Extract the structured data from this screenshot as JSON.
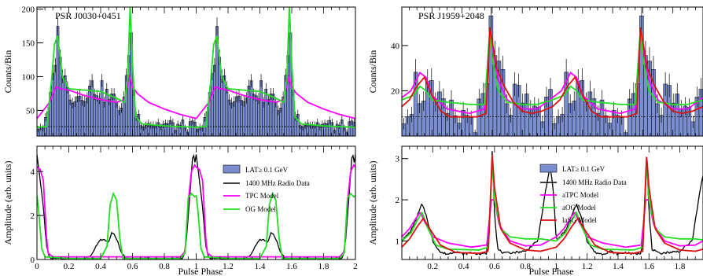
{
  "colors": {
    "lat_fill": "#7b8fd0",
    "lat_edge": "#000000",
    "radio": "#000000",
    "tpc": "#ff00ff",
    "og": "#22dd22",
    "sg": "#dd1111"
  },
  "chart_data": [
    {
      "type": "bar",
      "id": "j0030_top",
      "label": "PSR J0030+0451",
      "ylabel": "Counts/Bin",
      "xlim": [
        0,
        2
      ],
      "ylim": [
        12,
        203
      ],
      "yticks": [
        50,
        100,
        150,
        200
      ],
      "baseline": 26,
      "lat_profile": [
        [
          0,
          26
        ],
        [
          0.05,
          28
        ],
        [
          0.08,
          55
        ],
        [
          0.11,
          120
        ],
        [
          0.125,
          155
        ],
        [
          0.14,
          165
        ],
        [
          0.16,
          110
        ],
        [
          0.19,
          80
        ],
        [
          0.25,
          70
        ],
        [
          0.3,
          78
        ],
        [
          0.35,
          85
        ],
        [
          0.4,
          80
        ],
        [
          0.45,
          70
        ],
        [
          0.5,
          62
        ],
        [
          0.54,
          55
        ],
        [
          0.57,
          100
        ],
        [
          0.585,
          202
        ],
        [
          0.6,
          110
        ],
        [
          0.62,
          45
        ],
        [
          0.66,
          35
        ],
        [
          0.75,
          30
        ],
        [
          0.85,
          28
        ],
        [
          0.95,
          26
        ],
        [
          1,
          26
        ]
      ],
      "series": [
        {
          "name": "TPC Model",
          "color_key": "tpc",
          "points": [
            [
              0,
              38
            ],
            [
              0.04,
              50
            ],
            [
              0.08,
              62
            ],
            [
              0.12,
              85
            ],
            [
              0.15,
              82
            ],
            [
              0.2,
              80
            ],
            [
              0.3,
              72
            ],
            [
              0.4,
              66
            ],
            [
              0.5,
              62
            ],
            [
              0.55,
              66
            ],
            [
              0.58,
              100
            ],
            [
              0.6,
              85
            ],
            [
              0.63,
              75
            ],
            [
              0.7,
              62
            ],
            [
              0.8,
              52
            ],
            [
              0.9,
              44
            ],
            [
              1,
              38
            ]
          ]
        },
        {
          "name": "OG Model",
          "color_key": "og",
          "points": [
            [
              0,
              25
            ],
            [
              0.06,
              26
            ],
            [
              0.09,
              90
            ],
            [
              0.11,
              148
            ],
            [
              0.13,
              160
            ],
            [
              0.16,
              100
            ],
            [
              0.2,
              82
            ],
            [
              0.3,
              80
            ],
            [
              0.4,
              78
            ],
            [
              0.5,
              68
            ],
            [
              0.55,
              62
            ],
            [
              0.57,
              100
            ],
            [
              0.585,
              203
            ],
            [
              0.6,
              120
            ],
            [
              0.62,
              40
            ],
            [
              0.66,
              30
            ],
            [
              0.8,
              27
            ],
            [
              1,
              25
            ]
          ]
        }
      ]
    },
    {
      "type": "line",
      "id": "j0030_bottom",
      "xlabel": "Pulse Phase",
      "ylabel": "Amplitude (arb. units)",
      "xlim": [
        0,
        2
      ],
      "ylim": [
        0,
        5.15
      ],
      "yticks": [
        0,
        2,
        4
      ],
      "xticks": [
        0,
        0.2,
        0.4,
        0.6,
        0.8,
        1,
        1.2,
        1.4,
        1.6,
        1.8,
        2
      ],
      "xtick_labels": [
        "0",
        "0.2",
        "0.4",
        "0.6",
        "0.8",
        "1",
        "1.2",
        "1.4",
        "1.6",
        "1.8",
        "2"
      ],
      "series": [
        {
          "name": "1400 MHz Radio Data",
          "color_key": "radio",
          "points": [
            [
              0,
              4.8
            ],
            [
              0.02,
              3.6
            ],
            [
              0.04,
              2.4
            ],
            [
              0.06,
              0.6
            ],
            [
              0.08,
              0.05
            ],
            [
              0.3,
              0.02
            ],
            [
              0.34,
              0.2
            ],
            [
              0.37,
              0.6
            ],
            [
              0.4,
              0.9
            ],
            [
              0.43,
              0.88
            ],
            [
              0.45,
              0.75
            ],
            [
              0.47,
              1.25
            ],
            [
              0.49,
              1.1
            ],
            [
              0.51,
              0.75
            ],
            [
              0.53,
              0.3
            ],
            [
              0.56,
              0.05
            ],
            [
              0.8,
              0.02
            ],
            [
              0.92,
              0.05
            ],
            [
              0.94,
              1.0
            ],
            [
              0.96,
              2.9
            ],
            [
              0.98,
              4.9
            ],
            [
              1,
              4.1
            ]
          ]
        },
        {
          "name": "TPC Model",
          "color_key": "tpc",
          "points": [
            [
              0,
              4.2
            ],
            [
              0.02,
              4.1
            ],
            [
              0.04,
              3.6
            ],
            [
              0.06,
              1.0
            ],
            [
              0.07,
              0.3
            ],
            [
              0.1,
              0.12
            ],
            [
              0.46,
              0.12
            ],
            [
              0.5,
              0.12
            ],
            [
              0.54,
              0.12
            ],
            [
              0.9,
              0.12
            ],
            [
              0.93,
              0.35
            ],
            [
              0.95,
              2.6
            ],
            [
              0.97,
              4.0
            ],
            [
              0.99,
              4.3
            ],
            [
              1,
              4.2
            ]
          ]
        },
        {
          "name": "OG Model",
          "color_key": "og",
          "points": [
            [
              0,
              2.9
            ],
            [
              0.01,
              2.3
            ],
            [
              0.03,
              0.5
            ],
            [
              0.05,
              0.12
            ],
            [
              0.2,
              0.05
            ],
            [
              0.4,
              0.05
            ],
            [
              0.44,
              0.6
            ],
            [
              0.46,
              2.5
            ],
            [
              0.48,
              3.0
            ],
            [
              0.5,
              2.7
            ],
            [
              0.52,
              1.0
            ],
            [
              0.54,
              0.05
            ],
            [
              0.9,
              0.05
            ],
            [
              0.93,
              0.3
            ],
            [
              0.95,
              2.8
            ],
            [
              0.97,
              3.0
            ],
            [
              0.99,
              2.85
            ],
            [
              1,
              2.9
            ]
          ]
        }
      ],
      "bars": {
        "name": "LAT≥ 0.1 GeV"
      }
    },
    {
      "type": "bar",
      "id": "j1959_top",
      "label": "PSR J1959+2048",
      "ylabel": "Counts/Bin",
      "xlim": [
        0,
        2
      ],
      "ylim": [
        0,
        57
      ],
      "yticks": [
        20,
        40
      ],
      "baseline": 8.5,
      "lat_profile": [
        [
          0,
          14
        ],
        [
          0.04,
          16
        ],
        [
          0.08,
          20
        ],
        [
          0.12,
          22
        ],
        [
          0.15,
          24
        ],
        [
          0.18,
          18
        ],
        [
          0.22,
          12
        ],
        [
          0.28,
          10
        ],
        [
          0.36,
          8.5
        ],
        [
          0.44,
          8.5
        ],
        [
          0.5,
          9
        ],
        [
          0.56,
          12
        ],
        [
          0.585,
          48
        ],
        [
          0.6,
          38
        ],
        [
          0.63,
          28
        ],
        [
          0.68,
          20
        ],
        [
          0.75,
          14
        ],
        [
          0.82,
          11
        ],
        [
          0.9,
          10
        ],
        [
          0.96,
          12
        ],
        [
          1,
          14
        ]
      ],
      "series": [
        {
          "name": "aTPC Model",
          "color_key": "tpc",
          "points": [
            [
              0,
              17
            ],
            [
              0.06,
              20
            ],
            [
              0.12,
              28
            ],
            [
              0.16,
              26
            ],
            [
              0.2,
              18
            ],
            [
              0.3,
              12
            ],
            [
              0.45,
              10
            ],
            [
              0.55,
              12
            ],
            [
              0.585,
              45
            ],
            [
              0.6,
              40
            ],
            [
              0.64,
              25
            ],
            [
              0.7,
              16
            ],
            [
              0.8,
              12
            ],
            [
              0.9,
              12
            ],
            [
              1,
              17
            ]
          ]
        },
        {
          "name": "aOG Model",
          "color_key": "og",
          "points": [
            [
              0,
              16
            ],
            [
              0.08,
              18
            ],
            [
              0.12,
              22
            ],
            [
              0.16,
              20
            ],
            [
              0.2,
              16
            ],
            [
              0.3,
              15
            ],
            [
              0.45,
              14
            ],
            [
              0.55,
              14
            ],
            [
              0.585,
              48
            ],
            [
              0.6,
              35
            ],
            [
              0.64,
              20
            ],
            [
              0.7,
              15
            ],
            [
              0.8,
              14
            ],
            [
              0.9,
              14
            ],
            [
              1,
              16
            ]
          ]
        },
        {
          "name": "laSG Model",
          "color_key": "sg",
          "points": [
            [
              0,
              13
            ],
            [
              0.05,
              16
            ],
            [
              0.1,
              22
            ],
            [
              0.15,
              26
            ],
            [
              0.2,
              18
            ],
            [
              0.26,
              11
            ],
            [
              0.32,
              8.5
            ],
            [
              0.5,
              8.5
            ],
            [
              0.56,
              10
            ],
            [
              0.585,
              48
            ],
            [
              0.6,
              42
            ],
            [
              0.63,
              30
            ],
            [
              0.68,
              22
            ],
            [
              0.74,
              15
            ],
            [
              0.8,
              11
            ],
            [
              0.86,
              10
            ],
            [
              0.93,
              11
            ],
            [
              1,
              13
            ]
          ]
        }
      ]
    },
    {
      "type": "line",
      "id": "j1959_bottom",
      "xlabel": "Pulse Phase",
      "ylabel": "Amplitude (arb. units)",
      "xlim": [
        0,
        1.95
      ],
      "ylim": [
        0.55,
        3.3
      ],
      "yticks": [
        1,
        2,
        3
      ],
      "xticks": [
        0.2,
        0.4,
        0.6,
        0.8,
        1,
        1.2,
        1.4,
        1.6,
        1.8
      ],
      "xtick_labels": [
        "0.2",
        "0.4",
        "0.6",
        "0.8",
        "1",
        "1.2",
        "1.4",
        "1.6",
        "1.8"
      ],
      "series": [
        {
          "name": "1400 MHz Radio Data",
          "color_key": "radio",
          "points": [
            [
              0,
              1.0
            ],
            [
              0.06,
              1.25
            ],
            [
              0.1,
              1.6
            ],
            [
              0.13,
              1.9
            ],
            [
              0.16,
              1.6
            ],
            [
              0.2,
              1.0
            ],
            [
              0.25,
              0.72
            ],
            [
              0.3,
              0.68
            ],
            [
              0.35,
              0.75
            ],
            [
              0.4,
              0.68
            ],
            [
              0.45,
              0.72
            ],
            [
              0.5,
              0.68
            ],
            [
              0.55,
              0.7
            ],
            [
              0.575,
              2.0
            ],
            [
              0.585,
              3.2
            ],
            [
              0.6,
              1.7
            ],
            [
              0.62,
              0.8
            ],
            [
              0.66,
              0.7
            ],
            [
              0.72,
              0.72
            ],
            [
              0.8,
              0.75
            ],
            [
              0.88,
              1.0
            ],
            [
              0.93,
              2.2
            ],
            [
              0.96,
              2.8
            ],
            [
              0.98,
              2.3
            ],
            [
              1,
              1.0
            ]
          ]
        },
        {
          "name": "aTPC Model",
          "color_key": "tpc",
          "points": [
            [
              0,
              1.1
            ],
            [
              0.05,
              1.3
            ],
            [
              0.1,
              1.6
            ],
            [
              0.12,
              1.7
            ],
            [
              0.15,
              1.45
            ],
            [
              0.2,
              1.1
            ],
            [
              0.3,
              0.95
            ],
            [
              0.45,
              0.85
            ],
            [
              0.55,
              0.9
            ],
            [
              0.58,
              2.0
            ],
            [
              0.6,
              2.0
            ],
            [
              0.63,
              1.4
            ],
            [
              0.7,
              1.0
            ],
            [
              0.8,
              0.88
            ],
            [
              0.9,
              0.9
            ],
            [
              1,
              1.1
            ]
          ]
        },
        {
          "name": "aOG Model",
          "color_key": "og",
          "points": [
            [
              0,
              1.0
            ],
            [
              0.06,
              1.2
            ],
            [
              0.1,
              1.5
            ],
            [
              0.13,
              1.7
            ],
            [
              0.17,
              1.3
            ],
            [
              0.22,
              0.9
            ],
            [
              0.3,
              0.8
            ],
            [
              0.5,
              0.78
            ],
            [
              0.56,
              0.85
            ],
            [
              0.585,
              2.9
            ],
            [
              0.6,
              2.0
            ],
            [
              0.64,
              1.3
            ],
            [
              0.7,
              1.1
            ],
            [
              0.8,
              1.05
            ],
            [
              0.9,
              1.05
            ],
            [
              1,
              1.0
            ]
          ]
        },
        {
          "name": "laSG Model",
          "color_key": "sg",
          "points": [
            [
              0,
              0.85
            ],
            [
              0.05,
              1.05
            ],
            [
              0.1,
              1.35
            ],
            [
              0.14,
              1.55
            ],
            [
              0.18,
              1.3
            ],
            [
              0.25,
              0.9
            ],
            [
              0.35,
              0.72
            ],
            [
              0.5,
              0.7
            ],
            [
              0.56,
              0.75
            ],
            [
              0.585,
              3.1
            ],
            [
              0.6,
              2.3
            ],
            [
              0.64,
              1.3
            ],
            [
              0.7,
              0.95
            ],
            [
              0.8,
              0.78
            ],
            [
              0.9,
              0.75
            ],
            [
              1,
              0.85
            ]
          ]
        }
      ],
      "bars": {
        "name": "LAT≥ 0.1 GeV"
      }
    }
  ]
}
